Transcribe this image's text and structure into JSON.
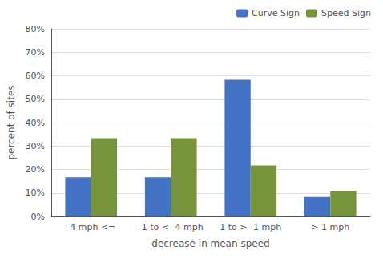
{
  "chart_data": {
    "type": "bar",
    "categories": [
      "-4 mph <=",
      "-1 to < -4 mph",
      "1 to > -1 mph",
      "> 1 mph"
    ],
    "series": [
      {
        "name": "Curve Sign",
        "color": "#4472C4",
        "values": [
          0.167,
          0.167,
          0.583,
          0.083
        ]
      },
      {
        "name": "Speed Sign",
        "color": "#77933C",
        "values": [
          0.333,
          0.333,
          0.217,
          0.108
        ]
      }
    ],
    "xlabel": "decrease in mean speed",
    "ylabel": "percent of sites",
    "ylim": [
      0,
      0.8
    ],
    "yticks": [
      {
        "value": 0,
        "label": "0%"
      },
      {
        "value": 0.1,
        "label": "10%"
      },
      {
        "value": 0.2,
        "label": "20%"
      },
      {
        "value": 0.3,
        "label": "30%"
      },
      {
        "value": 0.4,
        "label": "40%"
      },
      {
        "value": 0.5,
        "label": "50%"
      },
      {
        "value": 0.6,
        "label": "60%"
      },
      {
        "value": 0.7,
        "label": "70%"
      },
      {
        "value": 0.8,
        "label": "80%"
      }
    ],
    "grid": true,
    "legend": "upper right"
  }
}
